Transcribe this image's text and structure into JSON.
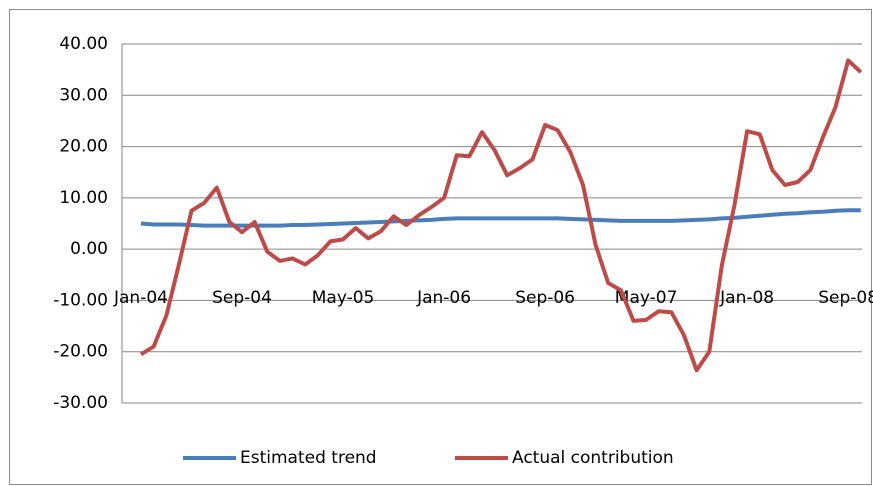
{
  "chart_data": {
    "type": "line",
    "categories": [
      "Jan-04",
      null,
      null,
      null,
      null,
      null,
      null,
      null,
      "Sep-04",
      null,
      null,
      null,
      null,
      null,
      null,
      null,
      "May-05",
      null,
      null,
      null,
      null,
      null,
      null,
      null,
      "Jan-06",
      null,
      null,
      null,
      null,
      null,
      null,
      null,
      "Sep-06",
      null,
      null,
      null,
      null,
      null,
      null,
      null,
      "May-07",
      null,
      null,
      null,
      null,
      null,
      null,
      null,
      "Jan-08",
      null,
      null,
      null,
      null,
      null,
      null,
      null,
      "Sep-08",
      null
    ],
    "series": [
      {
        "name": "Estimated trend",
        "color": "#4a7ebb",
        "values": [
          5.0,
          4.8,
          4.8,
          4.8,
          4.7,
          4.6,
          4.6,
          4.6,
          4.6,
          4.6,
          4.6,
          4.6,
          4.7,
          4.7,
          4.8,
          4.9,
          5.0,
          5.1,
          5.2,
          5.3,
          5.4,
          5.5,
          5.6,
          5.7,
          5.9,
          6.0,
          6.0,
          6.0,
          6.0,
          6.0,
          6.0,
          6.0,
          6.0,
          6.0,
          5.9,
          5.8,
          5.7,
          5.6,
          5.5,
          5.5,
          5.5,
          5.5,
          5.5,
          5.6,
          5.7,
          5.8,
          6.0,
          6.1,
          6.3,
          6.5,
          6.7,
          6.9,
          7.0,
          7.2,
          7.3,
          7.5,
          7.6,
          7.6
        ]
      },
      {
        "name": "Actual contribution",
        "color": "#be4b48",
        "values": [
          -20.5,
          -19.0,
          -13.0,
          -3.0,
          7.5,
          9.0,
          12.0,
          5.3,
          3.3,
          5.3,
          -0.5,
          -2.3,
          -1.8,
          -3.0,
          -1.2,
          1.5,
          1.9,
          4.1,
          2.1,
          3.5,
          6.4,
          4.7,
          6.6,
          8.2,
          10.0,
          18.3,
          18.1,
          22.8,
          19.3,
          14.4,
          15.8,
          17.5,
          24.2,
          23.2,
          18.9,
          12.5,
          0.8,
          -6.6,
          -8.0,
          -14.0,
          -13.8,
          -12.1,
          -12.3,
          -16.8,
          -23.6,
          -20.0,
          -3.1,
          8.6,
          23.0,
          22.4,
          15.4,
          12.5,
          13.1,
          15.4,
          21.8,
          27.7,
          36.8,
          34.5
        ]
      }
    ],
    "ylim": [
      -30,
      40
    ],
    "yticks": [
      {
        "value": -30,
        "label": "-30.00"
      },
      {
        "value": -20,
        "label": "-20.00"
      },
      {
        "value": -10,
        "label": "-10.00"
      },
      {
        "value": 0,
        "label": "0.00"
      },
      {
        "value": 10,
        "label": "10.00"
      },
      {
        "value": 20,
        "label": "20.00"
      },
      {
        "value": 30,
        "label": "30.00"
      },
      {
        "value": 40,
        "label": "40.00"
      }
    ],
    "grid": true,
    "legend": "bottom"
  }
}
